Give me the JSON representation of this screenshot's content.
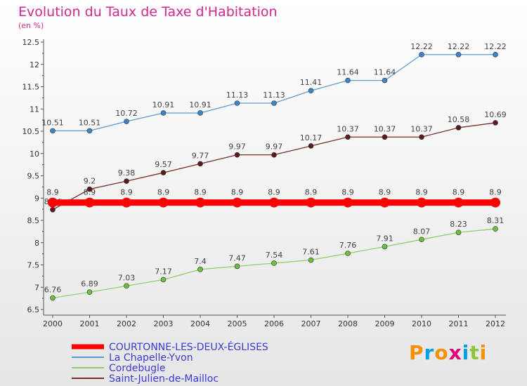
{
  "header": {
    "title": "Evolution du Taux de Taxe d'Habitation",
    "subtitle": "(en %)"
  },
  "chart_data": {
    "type": "line",
    "x": [
      "2000",
      "2001",
      "2002",
      "2003",
      "2004",
      "2005",
      "2006",
      "2007",
      "2008",
      "2009",
      "2010",
      "2011",
      "2012"
    ],
    "ylim": [
      6.5,
      12.5
    ],
    "yticks": [
      "6.5",
      "7",
      "7.5",
      "8",
      "8.5",
      "9",
      "9.5",
      "10",
      "10.5",
      "11",
      "11.5",
      "12",
      "12.5"
    ],
    "grid": false,
    "legend_position": "bottom",
    "series": [
      {
        "name": "La Chapelle-Yvon",
        "color": "#5b9bd5",
        "marker": "#3d85c6",
        "values": [
          10.51,
          10.51,
          10.72,
          10.91,
          10.91,
          11.13,
          11.13,
          11.41,
          11.64,
          11.64,
          12.22,
          12.22,
          12.22
        ],
        "labels": [
          "10.51",
          "10.51",
          "10.72",
          "10.91",
          "10.91",
          "11.13",
          "11.13",
          "11.41",
          "11.64",
          "11.64",
          "12.22",
          "12.22",
          "12.22"
        ]
      },
      {
        "name": "Saint-Julien-de-Mailloc",
        "color": "#7b2c2c",
        "marker": "#5c1a1a",
        "values": [
          8.74,
          9.2,
          9.38,
          9.57,
          9.77,
          9.97,
          9.97,
          10.17,
          10.37,
          10.37,
          10.37,
          10.58,
          10.69
        ],
        "labels": [
          "8.74",
          "9.2",
          "9.38",
          "9.57",
          "9.77",
          "9.97",
          "9.97",
          "10.17",
          "10.37",
          "10.37",
          "10.37",
          "10.58",
          "10.69"
        ]
      },
      {
        "name": "Cordebugle",
        "color": "#8ed06a",
        "marker": "#6cbf3f",
        "values": [
          6.76,
          6.89,
          7.03,
          7.17,
          7.4,
          7.47,
          7.54,
          7.61,
          7.76,
          7.91,
          8.07,
          8.23,
          8.31
        ],
        "labels": [
          "6.76",
          "6.89",
          "7.03",
          "7.17",
          "7.4",
          "7.47",
          "7.54",
          "7.61",
          "7.76",
          "7.91",
          "8.07",
          "8.23",
          "8.31"
        ]
      },
      {
        "name": "COURTONNE-LES-DEUX-ÉGLISES",
        "color": "#ff0000",
        "marker": "#ff0000",
        "thick": true,
        "values": [
          8.9,
          8.9,
          8.9,
          8.9,
          8.9,
          8.9,
          8.9,
          8.9,
          8.9,
          8.9,
          8.9,
          8.9,
          8.9
        ],
        "labels": [
          "8.9",
          "8.9",
          "8.9",
          "8.9",
          "8.9",
          "8.9",
          "8.9",
          "8.9",
          "8.9",
          "8.9",
          "8.9",
          "8.9",
          "8.9"
        ]
      }
    ],
    "legend": [
      {
        "name": "COURTONNE-LES-DEUX-ÉGLISES",
        "color": "#ff0000",
        "thick": true
      },
      {
        "name": "La Chapelle-Yvon",
        "color": "#5b9bd5"
      },
      {
        "name": "Cordebugle",
        "color": "#8ed06a"
      },
      {
        "name": "Saint-Julien-de-Mailloc",
        "color": "#7b2c2c"
      }
    ]
  },
  "logo": {
    "letters": [
      "P",
      "r",
      "o",
      "x",
      "i",
      "t",
      "i"
    ],
    "colors": [
      "#f39200",
      "#00a0e3",
      "#f39200",
      "#e2007a",
      "#00a0e3",
      "#8cc63f",
      "#f39200"
    ]
  }
}
